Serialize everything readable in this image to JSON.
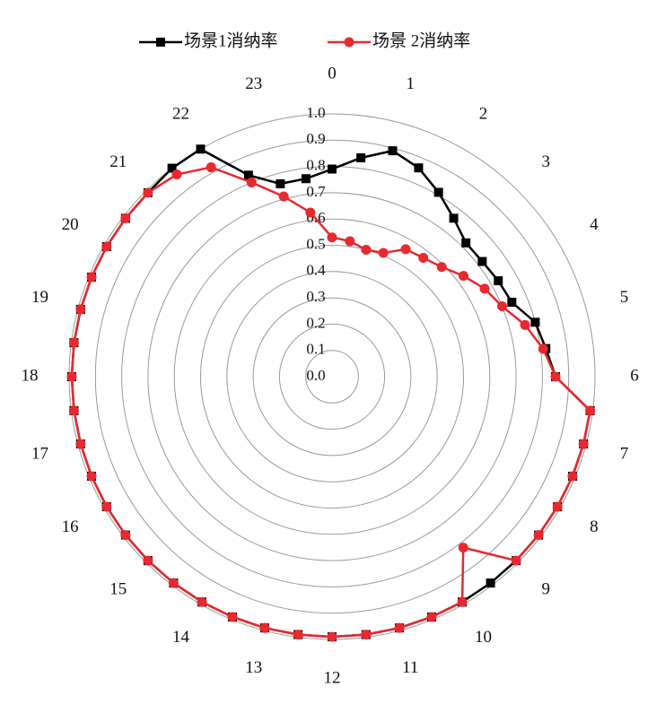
{
  "chart_data": {
    "type": "radar",
    "categories": [
      "0",
      null,
      "1",
      null,
      "2",
      null,
      "3",
      null,
      "4",
      null,
      "5",
      null,
      "6",
      null,
      "7",
      null,
      "8",
      null,
      "9",
      null,
      "10",
      null,
      "11",
      null,
      "12",
      null,
      "13",
      null,
      "14",
      null,
      "15",
      null,
      "16",
      null,
      "17",
      null,
      "18",
      null,
      "19",
      null,
      "20",
      null,
      "21",
      null,
      "22",
      null,
      "23",
      null
    ],
    "series": [
      {
        "name": "场景1消纳率",
        "color": "#000000",
        "marker": "square",
        "values": [
          0.79,
          0.84,
          0.89,
          0.86,
          0.81,
          0.76,
          0.72,
          0.72,
          0.73,
          0.74,
          0.8,
          0.82,
          0.85,
          0.99,
          0.99,
          0.99,
          0.99,
          0.99,
          0.99,
          0.99,
          0.99,
          0.99,
          0.99,
          0.99,
          0.99,
          0.99,
          0.99,
          0.99,
          0.99,
          0.99,
          0.99,
          0.99,
          0.99,
          0.99,
          0.99,
          0.99,
          0.99,
          0.99,
          0.99,
          0.99,
          0.99,
          0.99,
          0.99,
          1.0,
          1.0,
          0.83,
          0.76,
          0.76
        ]
      },
      {
        "name": "场景 2消纳率",
        "color": "#e8292f",
        "marker": "circle",
        "values": [
          0.53,
          0.52,
          0.5,
          0.51,
          0.56,
          0.57,
          0.59,
          0.63,
          0.67,
          0.7,
          0.76,
          0.81,
          0.85,
          0.99,
          0.99,
          0.99,
          0.99,
          0.99,
          0.99,
          0.82,
          0.99,
          0.99,
          0.99,
          0.99,
          0.99,
          0.99,
          0.99,
          0.99,
          0.99,
          0.99,
          0.99,
          0.99,
          0.99,
          0.99,
          0.99,
          0.99,
          0.99,
          0.99,
          0.99,
          0.99,
          0.99,
          0.99,
          0.99,
          0.97,
          0.92,
          0.8,
          0.71,
          0.63
        ]
      }
    ],
    "rlim": [
      0,
      1.0
    ],
    "rticks": [
      {
        "value": 0,
        "label": "0.0"
      },
      0.1,
      0.2,
      0.3,
      0.4,
      0.5,
      0.6,
      0.7,
      0.8,
      0.9,
      {
        "value": 1,
        "label": "1.0"
      }
    ],
    "legend": "top"
  }
}
